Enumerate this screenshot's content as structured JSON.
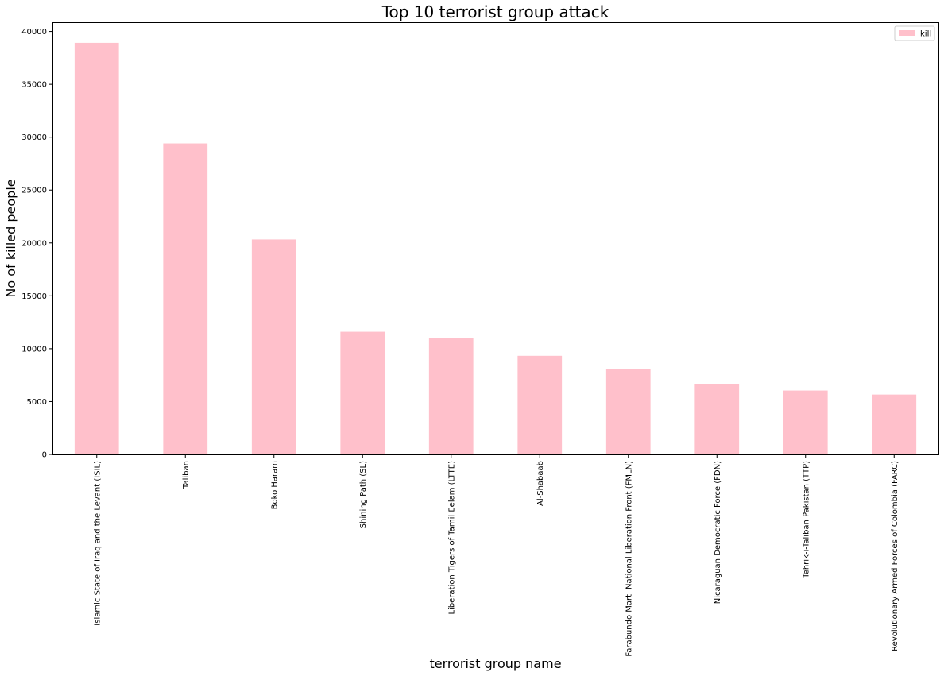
{
  "chart_data": {
    "type": "bar",
    "title": "Top 10 terrorist group attack",
    "xlabel": "terrorist group name",
    "ylabel": "No of killed people",
    "categories": [
      "Islamic State of Iraq and the Levant (ISIL)",
      "Taliban",
      "Boko Haram",
      "Shining Path (SL)",
      "Liberation Tigers of Tamil Eelam (LTTE)",
      "Al-Shabaab",
      "Farabundo Marti National Liberation Front (FMLN)",
      "Nicaraguan Democratic Force (FDN)",
      "Tehrik-i-Taliban Pakistan (TTP)",
      "Revolutionary Armed Forces of Colombia (FARC)"
    ],
    "series": [
      {
        "name": "kill",
        "color": "#ffc0cb",
        "values": [
          38923,
          29410,
          20328,
          11601,
          10989,
          9330,
          8065,
          6662,
          6042,
          5661
        ]
      }
    ],
    "yticks": [
      "0",
      "5000",
      "10000",
      "15000",
      "20000",
      "25000",
      "30000",
      "35000",
      "40000"
    ],
    "ylim": [
      0,
      40870
    ],
    "grid": false,
    "legend_position": "top-right"
  }
}
